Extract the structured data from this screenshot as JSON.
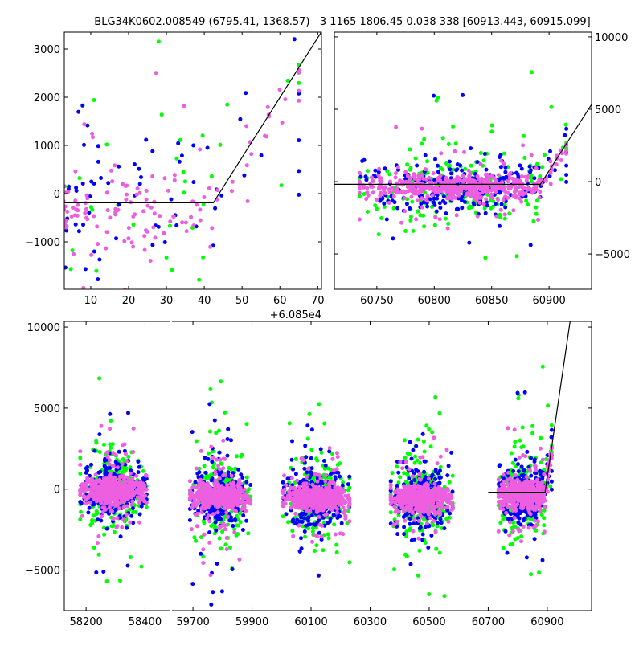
{
  "chart_data": [
    {
      "type": "scatter",
      "title": "BLG34K0602.008549 (6795.41, 1368.57)   3 1165 1806.45 0.038 338 [60913.443, 60915.099]",
      "panel": "top-left zoom",
      "xlim": [
        3,
        71
      ],
      "x_offset_label": "+6.085e4",
      "x_offset": 60850,
      "ylim": [
        -1983,
        3350
      ],
      "xticks": [
        10,
        20,
        30,
        40,
        50,
        60,
        70
      ],
      "xtick_labels": [
        "10",
        "20",
        "30",
        "40",
        "50",
        "60",
        "70"
      ],
      "yticks": [
        -1000,
        0,
        1000,
        2000,
        3000
      ],
      "ytick_labels": [
        "−1000",
        "0",
        "1000",
        "2000",
        "3000"
      ],
      "yaxis_side": "left"
    },
    {
      "type": "scatter",
      "panel": "top-right last season",
      "xlim": [
        60713,
        60937
      ],
      "ylim": [
        -7440,
        10330
      ],
      "xticks": [
        60750,
        60800,
        60850,
        60900
      ],
      "xtick_labels": [
        "60750",
        "60800",
        "60850",
        "60900"
      ],
      "yticks": [
        -5000,
        0,
        5000,
        10000
      ],
      "ytick_labels": [
        "−5000",
        "0",
        "5000",
        "10000"
      ],
      "yaxis_side": "right"
    },
    {
      "type": "scatter",
      "panel": "bottom all seasons (broken x axis)",
      "segments": [
        {
          "xlim": [
            58126,
            58486
          ],
          "xticks": [
            58200,
            58400
          ],
          "xtick_labels": [
            "58200",
            "58400"
          ]
        },
        {
          "xlim": [
            59629,
            61050
          ],
          "xticks": [
            59700,
            59900,
            60100,
            60300,
            60500,
            60700,
            60900
          ],
          "xtick_labels": [
            "59700",
            "59900",
            "60100",
            "60300",
            "60500",
            "60700",
            "60900"
          ]
        }
      ],
      "ylim": [
        -7500,
        10350
      ],
      "yticks": [
        -5000,
        0,
        5000,
        10000
      ],
      "ytick_labels": [
        "−5000",
        "0",
        "5000",
        "10000"
      ],
      "yaxis_side": "left"
    }
  ],
  "series": [
    {
      "name": "green",
      "color": "#00ff00",
      "sigma": 1200,
      "outlier_sigma": 3200,
      "n_per_season": 230
    },
    {
      "name": "blue",
      "color": "#0000ff",
      "sigma": 900,
      "outlier_sigma": 2600,
      "n_per_season": 260
    },
    {
      "name": "magenta",
      "color": "#ee5ee0",
      "sigma": 380,
      "outlier_sigma": 1500,
      "n_per_season": 520
    }
  ],
  "seasons": [
    {
      "start": 58180,
      "end": 58405,
      "baseline": -100
    },
    {
      "start": 59690,
      "end": 59895,
      "baseline": -450
    },
    {
      "start": 60005,
      "end": 60230,
      "baseline": -550
    },
    {
      "start": 60370,
      "end": 60580,
      "baseline": -550
    },
    {
      "start": 60735,
      "end": 60915,
      "baseline": -350
    }
  ],
  "model": {
    "baseline": -190,
    "t_break": 60892.4,
    "slope_per_day": 124,
    "bottom_line_start": 60700,
    "color": "#000000"
  }
}
